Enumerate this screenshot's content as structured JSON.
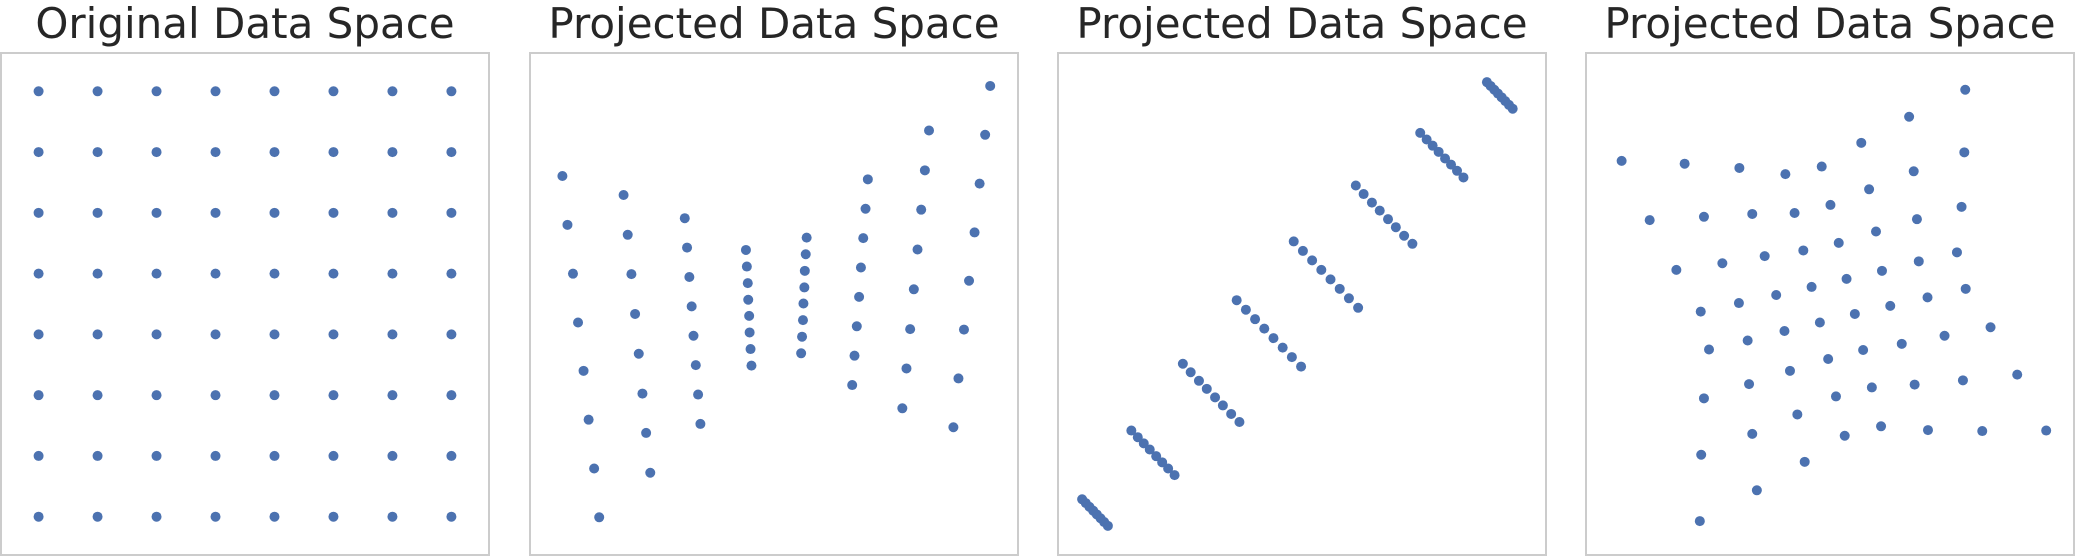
{
  "chart_data": [
    {
      "type": "scatter",
      "title": "Original Data Space",
      "color": "#4c72b0",
      "xlim": [
        -0.4,
        7.4
      ],
      "ylim": [
        -0.4,
        7.4
      ],
      "x": [
        0,
        0,
        0,
        0,
        0,
        0,
        0,
        0,
        1,
        1,
        1,
        1,
        1,
        1,
        1,
        1,
        2,
        2,
        2,
        2,
        2,
        2,
        2,
        2,
        3,
        3,
        3,
        3,
        3,
        3,
        3,
        3,
        4,
        4,
        4,
        4,
        4,
        4,
        4,
        4,
        5,
        5,
        5,
        5,
        5,
        5,
        5,
        5,
        6,
        6,
        6,
        6,
        6,
        6,
        6,
        6,
        7,
        7,
        7,
        7,
        7,
        7,
        7,
        7
      ],
      "values": [
        0,
        1,
        2,
        3,
        4,
        5,
        6,
        7,
        0,
        1,
        2,
        3,
        4,
        5,
        6,
        7,
        0,
        1,
        2,
        3,
        4,
        5,
        6,
        7,
        0,
        1,
        2,
        3,
        4,
        5,
        6,
        7,
        0,
        1,
        2,
        3,
        4,
        5,
        6,
        7,
        0,
        1,
        2,
        3,
        4,
        5,
        6,
        7,
        0,
        1,
        2,
        3,
        4,
        5,
        6,
        7,
        0,
        1,
        2,
        3,
        4,
        5,
        6,
        7
      ]
    },
    {
      "type": "scatter",
      "title": "Projected Data Space",
      "color": "#4c72b0",
      "xlim": [
        0,
        100
      ],
      "ylim": [
        0,
        100
      ],
      "x": [
        12,
        10.9,
        9.7,
        8.6,
        7.4,
        6.3,
        5.1,
        4,
        23.1,
        22.2,
        21.4,
        20.6,
        19.8,
        19,
        18.2,
        17.3,
        34,
        33.5,
        33,
        32.5,
        32.1,
        31.6,
        31.1,
        30.6,
        45.1,
        44.9,
        44.7,
        44.6,
        44.4,
        44.3,
        44.1,
        43.9,
        55.9,
        56.1,
        56.3,
        56.4,
        56.6,
        56.7,
        56.9,
        57.1,
        67,
        67.5,
        68,
        68.5,
        68.9,
        69.4,
        69.9,
        70.4,
        77.9,
        78.8,
        79.6,
        80.4,
        81.2,
        82,
        82.8,
        83.7,
        89,
        90.1,
        91.3,
        92.4,
        93.6,
        94.7,
        95.9,
        97
      ],
      "values": [
        5,
        15.3,
        25.6,
        35.9,
        46.1,
        56.4,
        66.7,
        77,
        14.4,
        22.8,
        31.1,
        39.5,
        47.9,
        56.3,
        64.6,
        73,
        24.7,
        30.9,
        37.1,
        43.3,
        49.5,
        55.7,
        61.9,
        68.1,
        37,
        40.5,
        44,
        47.5,
        50.9,
        54.4,
        57.9,
        61.4,
        39.6,
        43.1,
        46.6,
        50.1,
        53.5,
        57,
        60.5,
        64,
        32.9,
        39.1,
        45.3,
        51.5,
        57.7,
        63.9,
        70.1,
        76.3,
        28,
        36.4,
        44.7,
        53.1,
        61.5,
        69.9,
        78.2,
        86.6,
        24,
        34.3,
        44.6,
        54.9,
        65.1,
        75.4,
        85.7,
        96
      ]
    },
    {
      "type": "scatter",
      "title": "Projected Data Space",
      "color": "#4c72b0",
      "xlim": [
        0,
        100
      ],
      "ylim": [
        0,
        100
      ],
      "x": [
        7.8,
        7,
        6.2,
        5.4,
        4.6,
        3.8,
        3,
        2.2,
        22.3,
        20.9,
        19.6,
        18.3,
        16.9,
        15.6,
        14.3,
        12.9,
        36.4,
        34.6,
        32.8,
        31.1,
        29.3,
        27.6,
        25.8,
        24.1,
        49.8,
        47.8,
        45.8,
        43.8,
        41.8,
        39.8,
        37.8,
        35.8,
        62.2,
        60.2,
        58.2,
        56.2,
        54.2,
        52.2,
        50.2,
        48.2,
        74,
        72.2,
        70.4,
        68.7,
        66.9,
        65.2,
        63.4,
        61.7,
        85.1,
        83.7,
        82.4,
        81.1,
        79.7,
        78.4,
        77.1,
        75.7,
        95.8,
        95,
        94.2,
        93.4,
        92.6,
        91.8,
        91,
        90.2
      ],
      "values": [
        3.2,
        4,
        4.8,
        5.6,
        6.4,
        7.2,
        8,
        8.8,
        13.9,
        15.3,
        16.6,
        17.9,
        19.3,
        20.6,
        21.9,
        23.3,
        25.1,
        26.8,
        28.6,
        30.3,
        32.1,
        33.8,
        35.6,
        37.4,
        36.8,
        38.8,
        40.8,
        42.8,
        44.8,
        46.8,
        48.8,
        50.8,
        49.2,
        51.2,
        53.2,
        55.2,
        57.2,
        59.2,
        61.2,
        63.2,
        62.7,
        64.4,
        66.2,
        67.9,
        69.7,
        71.4,
        73.2,
        75,
        76.7,
        78.1,
        79.4,
        80.7,
        82.1,
        83.4,
        84.7,
        86.1,
        91.2,
        92,
        92.8,
        93.6,
        94.4,
        95.2,
        96,
        96.8
      ]
    },
    {
      "type": "scatter",
      "title": "Projected Data Space",
      "color": "#4c72b0",
      "xlim": [
        0,
        100
      ],
      "ylim": [
        0,
        100
      ],
      "x": [
        21.7,
        22,
        22.6,
        23.7,
        21.9,
        16.6,
        10.8,
        4.7,
        34.1,
        33.1,
        32.4,
        32.1,
        30.2,
        26.6,
        22.6,
        18.4,
        44.5,
        42.9,
        41.3,
        40.1,
        38.3,
        35.8,
        33.1,
        30.3,
        53.2,
        51.3,
        49.6,
        47.8,
        46,
        44.2,
        42.3,
        40.3,
        61.1,
        59.1,
        57.2,
        55.4,
        53.6,
        51.9,
        50.1,
        48.2,
        71.3,
        68.4,
        65.6,
        63.1,
        61.3,
        60,
        58.5,
        56.8,
        83.1,
        78.9,
        74.9,
        71.2,
        69.3,
        68.9,
        68.2,
        67.2,
        97,
        90.7,
        84.9,
        79.5,
        77.6,
        78.6,
        79.2,
        79.4
      ],
      "values": [
        4.2,
        18.2,
        30.1,
        40.4,
        48.4,
        57.2,
        67.7,
        80.2,
        10.7,
        22.6,
        33.1,
        42.3,
        50.2,
        58.6,
        68.4,
        79.6,
        16.7,
        26.7,
        35.9,
        44.3,
        51.9,
        60.1,
        69,
        78.7,
        22.2,
        30.5,
        38.4,
        46.1,
        53.6,
        61.3,
        69.2,
        77.4,
        24.2,
        32.4,
        40.3,
        47.9,
        55.3,
        62.9,
        70.9,
        79,
        23.4,
        33,
        41.6,
        49.6,
        57,
        65.3,
        74.2,
        84,
        23.2,
        33.9,
        43.3,
        51.4,
        59,
        67.9,
        78,
        89.5,
        23.3,
        35.1,
        45.1,
        53.2,
        60.9,
        70.5,
        82,
        95.2
      ]
    }
  ]
}
